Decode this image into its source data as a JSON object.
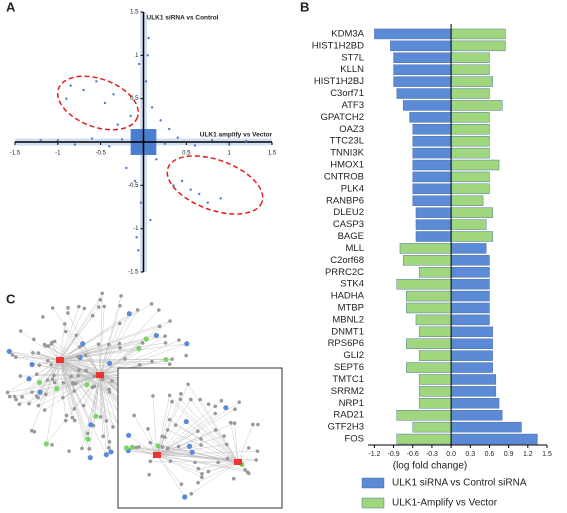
{
  "panel_labels": [
    "A",
    "B",
    "C"
  ],
  "chart_data": [
    {
      "type": "scatter",
      "xlabel": "ULK1 amplify vs Vector",
      "ylabel": "ULK1 siRNA vs Control",
      "color": "#4a7fd0",
      "xlim": [
        -1.5,
        1.5
      ],
      "ylim": [
        -1.5,
        1.5
      ],
      "xticks": [
        -1.5,
        -1.0,
        -0.5,
        0.5,
        1.0,
        1.5
      ],
      "yticks": [
        -1.5,
        -1.0,
        -0.5,
        0.5,
        1.0,
        1.5
      ],
      "x": [
        -0.85,
        -0.7,
        -0.55,
        -0.35,
        -0.9,
        -0.45,
        0.55,
        0.65,
        0.75,
        0.35,
        0.45,
        0.9,
        -1.0,
        -0.8,
        -0.6,
        -0.4,
        -0.25,
        0.25,
        0.4,
        0.6,
        0.8,
        1.0,
        1.2,
        -1.2,
        0.05,
        -0.05,
        0.08,
        -0.08,
        0.03,
        -0.03,
        0.06,
        -0.06,
        0.1,
        -0.1,
        0.2,
        -0.2,
        0.3,
        -0.3,
        0.15,
        -0.15
      ],
      "y": [
        0.65,
        0.6,
        0.7,
        0.55,
        0.5,
        0.45,
        -0.55,
        -0.6,
        -0.7,
        -0.5,
        -0.45,
        -0.65,
        0.02,
        -0.03,
        0.04,
        -0.05,
        0.03,
        -0.02,
        0.05,
        -0.04,
        0.02,
        -0.03,
        0.01,
        0.02,
        1.0,
        0.9,
        -0.9,
        -1.1,
        0.7,
        -0.7,
        1.2,
        -1.25,
        0.4,
        -0.45,
        0.25,
        -0.3,
        0.15,
        0.2,
        -0.2,
        0.3
      ]
    },
    {
      "type": "hbar",
      "xlabel": "(log fold change)",
      "highlight_color": "#e02020",
      "highlighted": [
        6,
        16,
        32
      ],
      "xlim": [
        -1.3,
        1.5
      ],
      "xticks": [
        -1.2,
        -0.9,
        -0.6,
        -0.3,
        {
          "value": 0,
          "label": "0.0"
        },
        0.3,
        0.6,
        0.9,
        1.2,
        1.5
      ],
      "categories": [
        "KDM3A",
        "HIST1H2BD",
        "ST7L",
        "KLLN",
        "HIST1H2BJ",
        "C3orf71",
        "ATF3",
        "GPATCH2",
        "OAZ3",
        "TTC23L",
        "TNNI3K",
        "HMOX1",
        "CNTROB",
        "PLK4",
        "RANBP6",
        "DLEU2",
        "CASP3",
        "BAGE",
        "MLL",
        "C2orf68",
        "PRRC2C",
        "STK4",
        "HADHA",
        "MTBP",
        "MBNL2",
        "DNMT1",
        "RPS6P6",
        "GLI2",
        "SEPT6",
        "TMTC1",
        "SRRM2",
        "NRP1",
        "RAD21",
        "GTF2H3",
        "FOS"
      ],
      "series": [
        {
          "name": "ULK1 siRNA vs Control siRNA",
          "color": "#5b8bd6",
          "values": [
            -1.2,
            -0.95,
            -0.9,
            -0.9,
            -0.9,
            -0.85,
            -0.75,
            -0.65,
            -0.6,
            -0.6,
            -0.6,
            -0.6,
            -0.6,
            -0.6,
            -0.6,
            -0.55,
            -0.55,
            -0.55,
            0.55,
            0.6,
            0.6,
            0.6,
            0.6,
            0.6,
            0.6,
            0.65,
            0.65,
            0.65,
            0.65,
            0.7,
            0.7,
            0.75,
            0.8,
            1.1,
            1.35
          ]
        },
        {
          "name": "ULK1-Amplify vs Vector",
          "color": "#9fd67e",
          "values": [
            0.85,
            0.85,
            0.6,
            0.6,
            0.65,
            0.6,
            0.8,
            0.6,
            0.6,
            0.6,
            0.6,
            0.75,
            0.6,
            0.6,
            0.5,
            0.65,
            0.55,
            0.65,
            -0.8,
            -0.75,
            -0.5,
            -0.85,
            -0.7,
            -0.7,
            -0.55,
            -0.5,
            -0.7,
            -0.5,
            -0.7,
            -0.5,
            -0.5,
            -0.5,
            -0.85,
            -0.6,
            -0.85
          ]
        }
      ]
    }
  ]
}
